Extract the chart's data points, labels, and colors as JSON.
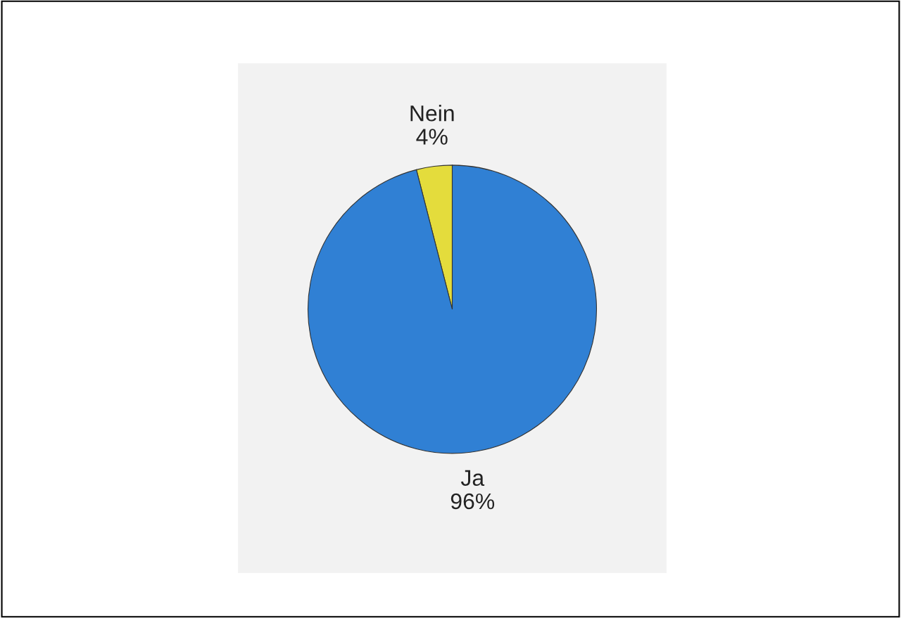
{
  "chart_data": {
    "type": "pie",
    "categories": [
      "Nein",
      "Ja"
    ],
    "values": [
      4,
      96
    ],
    "colors": [
      "#e4dc3c",
      "#3080d4"
    ],
    "value_labels": [
      "4%",
      "96%"
    ]
  }
}
